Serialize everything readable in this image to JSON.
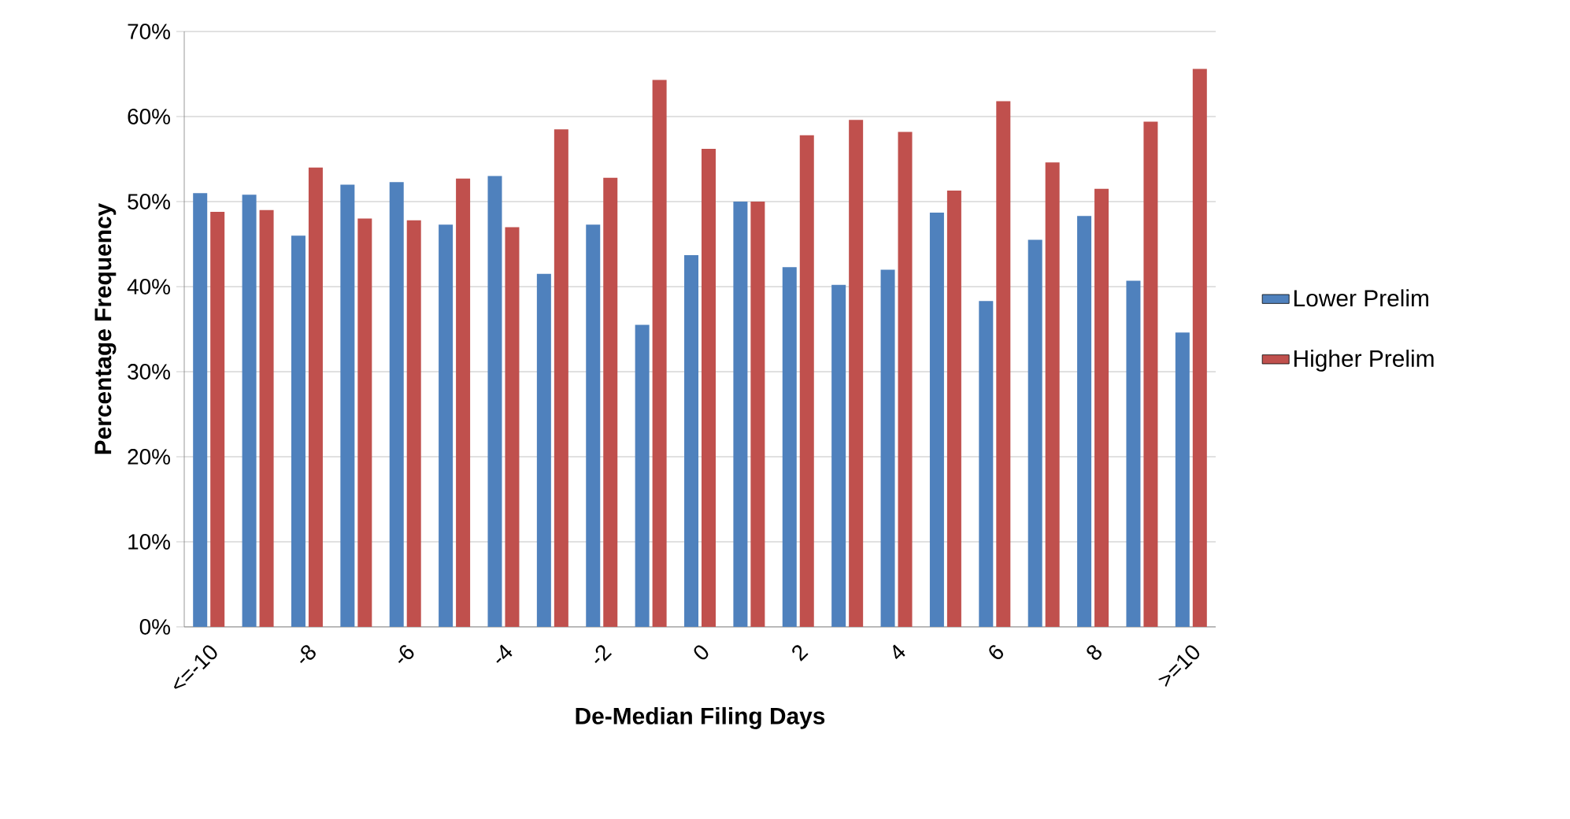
{
  "chart_data": {
    "type": "bar",
    "xlabel": "De-Median Filing Days",
    "ylabel": "Percentage Frequency",
    "categories": [
      "<=-10",
      null,
      "-8",
      null,
      "-6",
      null,
      "-4",
      null,
      "-2",
      null,
      "0",
      null,
      "2",
      null,
      "4",
      null,
      "6",
      null,
      "8",
      null,
      ">=10"
    ],
    "series": [
      {
        "name": "Lower Prelim",
        "color": "#4f81bd",
        "values": [
          51,
          50.8,
          46,
          52,
          52.3,
          47.3,
          53,
          41.5,
          47.3,
          35.5,
          43.7,
          50,
          42.3,
          40.2,
          42,
          48.7,
          38.3,
          45.5,
          48.3,
          40.7,
          34.6
        ]
      },
      {
        "name": "Higher Prelim",
        "color": "#c0504d",
        "values": [
          48.8,
          49,
          54,
          48,
          47.8,
          52.7,
          47,
          58.5,
          52.8,
          64.3,
          56.2,
          50,
          57.8,
          59.6,
          58.2,
          51.3,
          61.8,
          54.6,
          51.5,
          59.4,
          65.6
        ]
      }
    ],
    "ylim": [
      0,
      70
    ],
    "yticks": [
      {
        "value": 0,
        "label": "0%"
      },
      {
        "value": 10,
        "label": "10%"
      },
      {
        "value": 20,
        "label": "20%"
      },
      {
        "value": 30,
        "label": "30%"
      },
      {
        "value": 40,
        "label": "40%"
      },
      {
        "value": 50,
        "label": "50%"
      },
      {
        "value": 60,
        "label": "60%"
      },
      {
        "value": 70,
        "label": "70%"
      }
    ],
    "grid": "y",
    "legend": "right"
  }
}
